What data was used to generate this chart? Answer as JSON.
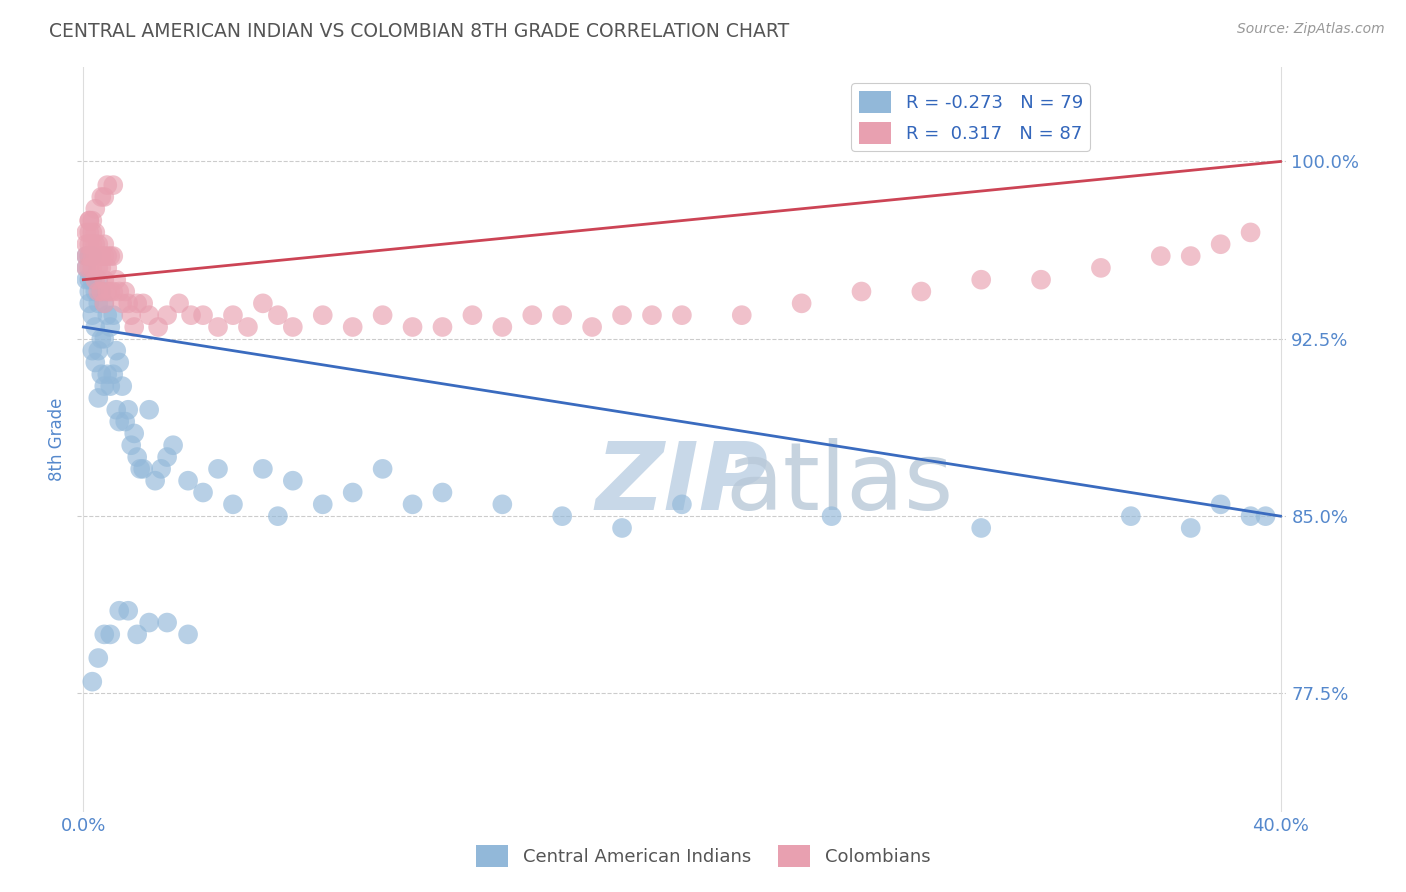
{
  "title": "CENTRAL AMERICAN INDIAN VS COLOMBIAN 8TH GRADE CORRELATION CHART",
  "source": "Source: ZipAtlas.com",
  "ylabel": "8th Grade",
  "ytick_positions": [
    0.775,
    0.85,
    0.925,
    1.0
  ],
  "ytick_labels": [
    "77.5%",
    "85.0%",
    "92.5%",
    "100.0%"
  ],
  "ylim": [
    0.725,
    1.04
  ],
  "xlim": [
    -0.002,
    0.402
  ],
  "blue_color": "#92b8d9",
  "pink_color": "#e8a0b0",
  "blue_line_color": "#3a6bbf",
  "pink_line_color": "#cc4455",
  "title_color": "#555555",
  "axis_label_color": "#5588cc",
  "watermark_color": "#c8d8e8",
  "blue_line_x0": 0.0,
  "blue_line_y0": 0.93,
  "blue_line_x1": 0.4,
  "blue_line_y1": 0.85,
  "pink_line_x0": 0.0,
  "pink_line_y0": 0.95,
  "pink_line_x1": 0.4,
  "pink_line_y1": 1.0,
  "blue_x": [
    0.001,
    0.001,
    0.001,
    0.002,
    0.002,
    0.002,
    0.002,
    0.003,
    0.003,
    0.003,
    0.003,
    0.004,
    0.004,
    0.004,
    0.005,
    0.005,
    0.005,
    0.005,
    0.006,
    0.006,
    0.006,
    0.007,
    0.007,
    0.007,
    0.008,
    0.008,
    0.009,
    0.009,
    0.01,
    0.01,
    0.011,
    0.011,
    0.012,
    0.012,
    0.013,
    0.014,
    0.015,
    0.016,
    0.017,
    0.018,
    0.019,
    0.02,
    0.022,
    0.024,
    0.026,
    0.028,
    0.03,
    0.035,
    0.04,
    0.045,
    0.05,
    0.06,
    0.065,
    0.07,
    0.08,
    0.09,
    0.1,
    0.11,
    0.12,
    0.14,
    0.16,
    0.18,
    0.2,
    0.25,
    0.3,
    0.35,
    0.37,
    0.38,
    0.39,
    0.395,
    0.003,
    0.005,
    0.007,
    0.009,
    0.012,
    0.015,
    0.018,
    0.022,
    0.028,
    0.035
  ],
  "blue_y": [
    0.96,
    0.955,
    0.95,
    0.96,
    0.95,
    0.945,
    0.94,
    0.95,
    0.96,
    0.935,
    0.92,
    0.945,
    0.93,
    0.915,
    0.95,
    0.94,
    0.92,
    0.9,
    0.945,
    0.925,
    0.91,
    0.94,
    0.925,
    0.905,
    0.935,
    0.91,
    0.93,
    0.905,
    0.935,
    0.91,
    0.92,
    0.895,
    0.915,
    0.89,
    0.905,
    0.89,
    0.895,
    0.88,
    0.885,
    0.875,
    0.87,
    0.87,
    0.895,
    0.865,
    0.87,
    0.875,
    0.88,
    0.865,
    0.86,
    0.87,
    0.855,
    0.87,
    0.85,
    0.865,
    0.855,
    0.86,
    0.87,
    0.855,
    0.86,
    0.855,
    0.85,
    0.845,
    0.855,
    0.85,
    0.845,
    0.85,
    0.845,
    0.855,
    0.85,
    0.85,
    0.78,
    0.79,
    0.8,
    0.8,
    0.81,
    0.81,
    0.8,
    0.805,
    0.805,
    0.8
  ],
  "pink_x": [
    0.001,
    0.001,
    0.001,
    0.001,
    0.002,
    0.002,
    0.002,
    0.002,
    0.002,
    0.003,
    0.003,
    0.003,
    0.003,
    0.004,
    0.004,
    0.004,
    0.004,
    0.005,
    0.005,
    0.005,
    0.005,
    0.006,
    0.006,
    0.006,
    0.007,
    0.007,
    0.007,
    0.007,
    0.008,
    0.008,
    0.008,
    0.009,
    0.009,
    0.01,
    0.01,
    0.011,
    0.012,
    0.013,
    0.014,
    0.015,
    0.016,
    0.017,
    0.018,
    0.02,
    0.022,
    0.025,
    0.028,
    0.032,
    0.036,
    0.04,
    0.045,
    0.05,
    0.055,
    0.06,
    0.065,
    0.07,
    0.08,
    0.09,
    0.1,
    0.11,
    0.12,
    0.13,
    0.14,
    0.15,
    0.16,
    0.17,
    0.18,
    0.19,
    0.2,
    0.22,
    0.24,
    0.26,
    0.28,
    0.3,
    0.32,
    0.34,
    0.36,
    0.37,
    0.38,
    0.39,
    0.002,
    0.003,
    0.004,
    0.006,
    0.007,
    0.008,
    0.01
  ],
  "pink_y": [
    0.97,
    0.965,
    0.96,
    0.955,
    0.975,
    0.97,
    0.965,
    0.96,
    0.955,
    0.97,
    0.965,
    0.96,
    0.955,
    0.97,
    0.965,
    0.96,
    0.95,
    0.965,
    0.96,
    0.955,
    0.945,
    0.96,
    0.955,
    0.945,
    0.965,
    0.96,
    0.95,
    0.94,
    0.96,
    0.955,
    0.945,
    0.96,
    0.945,
    0.96,
    0.945,
    0.95,
    0.945,
    0.94,
    0.945,
    0.94,
    0.935,
    0.93,
    0.94,
    0.94,
    0.935,
    0.93,
    0.935,
    0.94,
    0.935,
    0.935,
    0.93,
    0.935,
    0.93,
    0.94,
    0.935,
    0.93,
    0.935,
    0.93,
    0.935,
    0.93,
    0.93,
    0.935,
    0.93,
    0.935,
    0.935,
    0.93,
    0.935,
    0.935,
    0.935,
    0.935,
    0.94,
    0.945,
    0.945,
    0.95,
    0.95,
    0.955,
    0.96,
    0.96,
    0.965,
    0.97,
    0.975,
    0.975,
    0.98,
    0.985,
    0.985,
    0.99,
    0.99
  ]
}
